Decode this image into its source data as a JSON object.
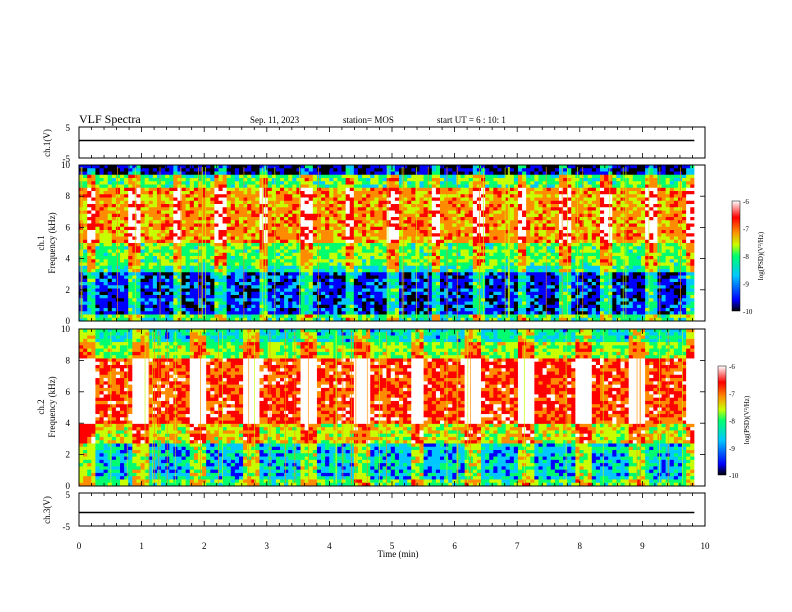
{
  "header": {
    "title": "VLF Spectra",
    "date": "Sep. 11, 2023",
    "station": "station= MOS",
    "start": "start UT =  6 : 10: 1"
  },
  "colors": {
    "scale": [
      "#000000",
      "#0000ff",
      "#00c8ff",
      "#00ff6e",
      "#c8ff00",
      "#ff8c00",
      "#ff0000",
      "#ffffff"
    ]
  },
  "chart_data": [
    {
      "id": "ch1-voltage",
      "type": "line",
      "ylabel": "ch.1(V)",
      "ylim": [
        -5,
        5
      ],
      "yticks": [
        "5",
        "-5"
      ],
      "x": [
        0,
        9.83
      ],
      "y": [
        0,
        0
      ]
    },
    {
      "id": "ch1-spectrogram",
      "type": "heatmap",
      "ylabel": "ch.1\nFrequency (kHz)",
      "ylim": [
        0,
        10
      ],
      "yticks": [
        "0",
        "2",
        "4",
        "6",
        "8",
        "10"
      ],
      "xlim": [
        0,
        10
      ],
      "colorbar": {
        "label": "log(PSD)(V²/Hz)",
        "range": [
          -10,
          -6
        ],
        "ticks": [
          "-6",
          "-7",
          "-8",
          "-9",
          "-10"
        ]
      }
    },
    {
      "id": "ch2-spectrogram",
      "type": "heatmap",
      "ylabel": "ch.2\nFrequency (kHz)",
      "ylim": [
        0,
        10
      ],
      "yticks": [
        "0",
        "2",
        "4",
        "6",
        "8",
        "10"
      ],
      "xlim": [
        0,
        10
      ],
      "colorbar": {
        "label": "log(PSD)(V²/Hz)",
        "range": [
          -10,
          -6
        ],
        "ticks": [
          "-6",
          "-7",
          "-8",
          "-9",
          "-10"
        ]
      }
    },
    {
      "id": "ch3-voltage",
      "type": "line",
      "ylabel": "ch.3(V)",
      "ylim": [
        -5,
        5
      ],
      "yticks": [
        "5",
        "-5"
      ],
      "x": [
        0,
        9.83
      ],
      "y": [
        0,
        0
      ]
    }
  ],
  "xaxis": {
    "label": "Time (min)",
    "ticks": [
      "0",
      "1",
      "2",
      "3",
      "4",
      "5",
      "6",
      "7",
      "8",
      "9",
      "10"
    ]
  }
}
